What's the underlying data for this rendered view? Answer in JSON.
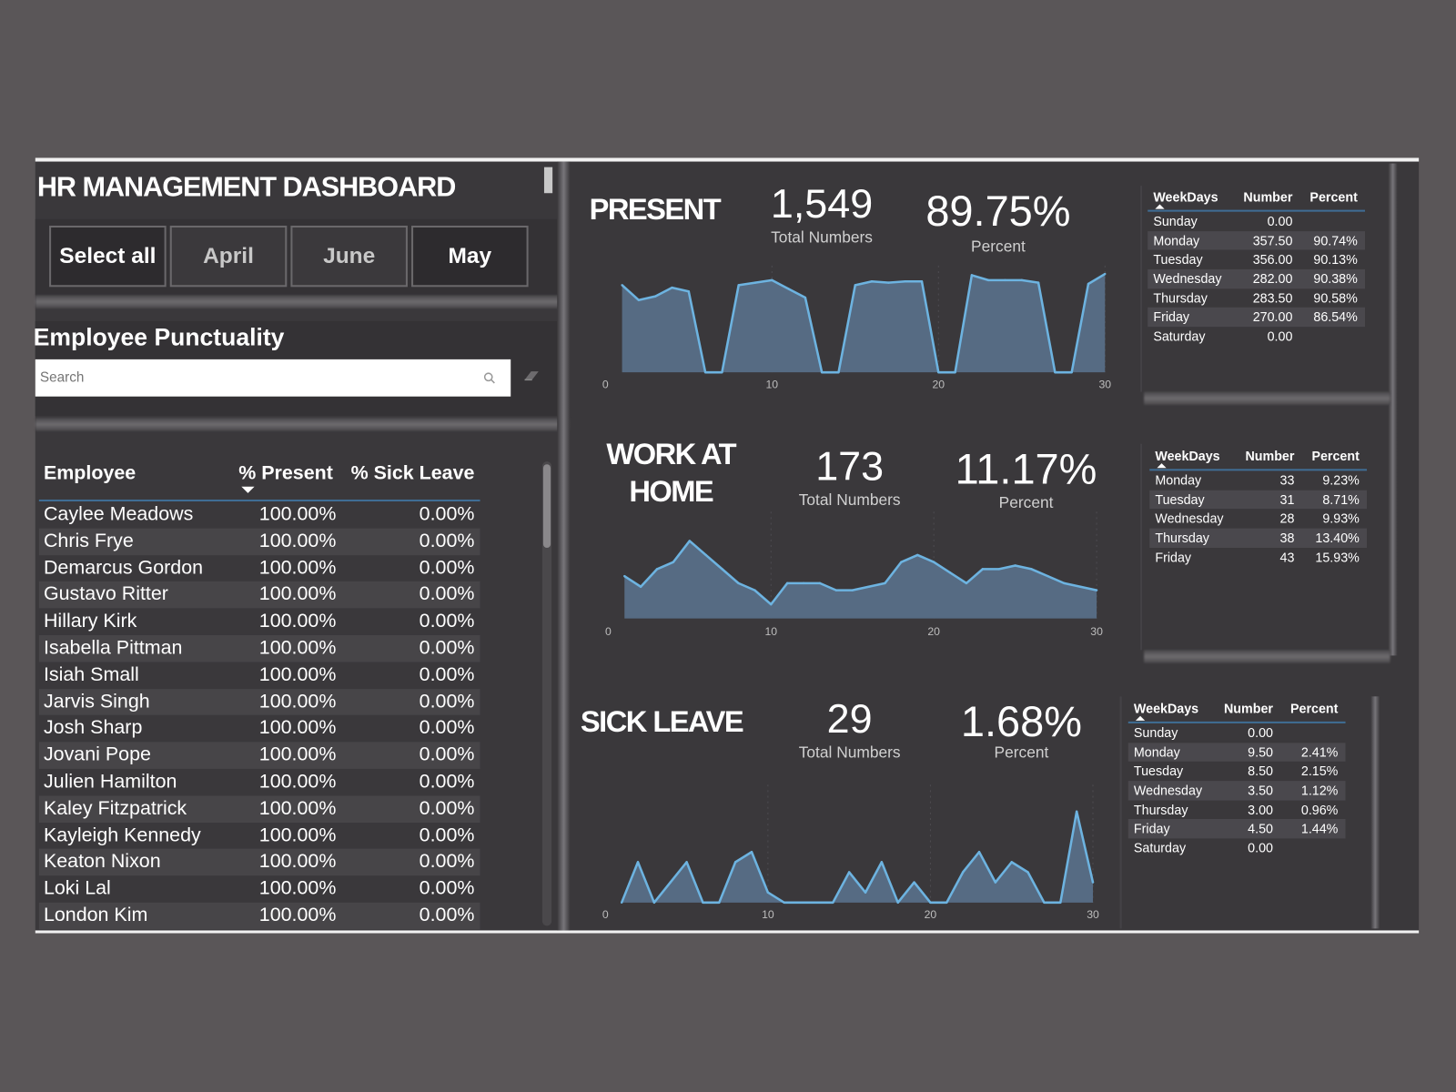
{
  "header": {
    "title": "HR MANAGEMENT DASHBOARD"
  },
  "slicer": {
    "items": [
      {
        "label": "Select all",
        "selected": true
      },
      {
        "label": "April",
        "selected": false
      },
      {
        "label": "June",
        "selected": false
      },
      {
        "label": "May",
        "selected": true
      }
    ]
  },
  "punctuality": {
    "title": "Employee Punctuality",
    "search_placeholder": "Search",
    "columns": [
      "Employee",
      "% Present",
      "% Sick Leave"
    ],
    "sorted_column": "% Present",
    "rows": [
      [
        "Caylee Meadows",
        "100.00%",
        "0.00%"
      ],
      [
        "Chris Frye",
        "100.00%",
        "0.00%"
      ],
      [
        "Demarcus Gordon",
        "100.00%",
        "0.00%"
      ],
      [
        "Gustavo Ritter",
        "100.00%",
        "0.00%"
      ],
      [
        "Hillary Kirk",
        "100.00%",
        "0.00%"
      ],
      [
        "Isabella Pittman",
        "100.00%",
        "0.00%"
      ],
      [
        "Isiah Small",
        "100.00%",
        "0.00%"
      ],
      [
        "Jarvis Singh",
        "100.00%",
        "0.00%"
      ],
      [
        "Josh Sharp",
        "100.00%",
        "0.00%"
      ],
      [
        "Jovani Pope",
        "100.00%",
        "0.00%"
      ],
      [
        "Julien Hamilton",
        "100.00%",
        "0.00%"
      ],
      [
        "Kaley Fitzpatrick",
        "100.00%",
        "0.00%"
      ],
      [
        "Kayleigh Kennedy",
        "100.00%",
        "0.00%"
      ],
      [
        "Keaton Nixon",
        "100.00%",
        "0.00%"
      ],
      [
        "Loki Lal",
        "100.00%",
        "0.00%"
      ],
      [
        "London Kim",
        "100.00%",
        "0.00%"
      ]
    ]
  },
  "sections": {
    "present": {
      "title": "PRESENT",
      "total": "1,549",
      "total_label": "Total Numbers",
      "percent": "89.75%",
      "percent_label": "Percent",
      "table": {
        "columns": [
          "WeekDays",
          "Number",
          "Percent"
        ],
        "rows": [
          [
            "Sunday",
            "0.00",
            ""
          ],
          [
            "Monday",
            "357.50",
            "90.74%"
          ],
          [
            "Tuesday",
            "356.00",
            "90.13%"
          ],
          [
            "Wednesday",
            "282.00",
            "90.38%"
          ],
          [
            "Thursday",
            "283.50",
            "90.58%"
          ],
          [
            "Friday",
            "270.00",
            "86.54%"
          ],
          [
            "Saturday",
            "0.00",
            ""
          ]
        ]
      }
    },
    "wah": {
      "title_line1": "WORK AT",
      "title_line2": "HOME",
      "total": "173",
      "total_label": "Total Numbers",
      "percent": "11.17%",
      "percent_label": "Percent",
      "table": {
        "columns": [
          "WeekDays",
          "Number",
          "Percent"
        ],
        "rows": [
          [
            "Monday",
            "33",
            "9.23%"
          ],
          [
            "Tuesday",
            "31",
            "8.71%"
          ],
          [
            "Wednesday",
            "28",
            "9.93%"
          ],
          [
            "Thursday",
            "38",
            "13.40%"
          ],
          [
            "Friday",
            "43",
            "15.93%"
          ]
        ]
      }
    },
    "sick": {
      "title": "SICK LEAVE",
      "total": "29",
      "total_label": "Total Numbers",
      "percent": "1.68%",
      "percent_label": "Percent",
      "table": {
        "columns": [
          "WeekDays",
          "Number",
          "Percent"
        ],
        "rows": [
          [
            "Sunday",
            "0.00",
            ""
          ],
          [
            "Monday",
            "9.50",
            "2.41%"
          ],
          [
            "Tuesday",
            "8.50",
            "2.15%"
          ],
          [
            "Wednesday",
            "3.50",
            "1.12%"
          ],
          [
            "Thursday",
            "3.00",
            "0.96%"
          ],
          [
            "Friday",
            "4.50",
            "1.44%"
          ],
          [
            "Saturday",
            "0.00",
            ""
          ]
        ]
      }
    }
  },
  "colors": {
    "line": "#6db3e0",
    "fill": "#566b83",
    "header_rule": "#3f6d94"
  },
  "chart_data": [
    {
      "type": "area",
      "id": "present",
      "x_ticks": [
        0,
        10,
        20,
        30
      ],
      "xlim": [
        0,
        30
      ],
      "ylim": [
        0,
        82
      ],
      "grid": "vertical dotted",
      "x": [
        1,
        2,
        3,
        4,
        5,
        6,
        7,
        8,
        9,
        10,
        11,
        12,
        13,
        14,
        15,
        16,
        17,
        18,
        19,
        20,
        21,
        22,
        23,
        24,
        25,
        26,
        27,
        28,
        29,
        30
      ],
      "values": [
        70,
        58,
        61,
        68,
        65,
        0,
        0,
        70,
        72,
        74,
        67,
        60,
        0,
        0,
        70,
        73,
        72,
        73,
        73,
        0,
        0,
        78,
        74,
        74,
        74,
        72,
        0,
        0,
        71,
        79
      ]
    },
    {
      "type": "area",
      "id": "wah",
      "x_ticks": [
        0,
        10,
        20,
        30
      ],
      "xlim": [
        0,
        30
      ],
      "ylim": [
        0,
        14.5
      ],
      "grid": "vertical dotted",
      "x": [
        1,
        2,
        3,
        4,
        5,
        6,
        7,
        8,
        9,
        10,
        11,
        12,
        13,
        14,
        15,
        16,
        17,
        18,
        19,
        20,
        21,
        22,
        23,
        24,
        25,
        26,
        27,
        28,
        29,
        30
      ],
      "values": [
        6,
        4.5,
        7,
        8,
        11,
        9,
        7,
        5,
        4,
        2,
        5,
        5,
        5,
        4,
        4,
        4.5,
        5,
        8,
        9,
        8,
        6.5,
        5,
        7,
        7,
        7.5,
        7,
        6,
        5,
        4.5,
        4
      ]
    },
    {
      "type": "area",
      "id": "sick",
      "x_ticks": [
        0,
        10,
        20,
        30
      ],
      "xlim": [
        0,
        30
      ],
      "ylim": [
        0,
        5.6
      ],
      "grid": "vertical dotted",
      "x": [
        1,
        2,
        3,
        4,
        5,
        6,
        7,
        8,
        9,
        10,
        11,
        12,
        13,
        14,
        15,
        16,
        17,
        18,
        19,
        20,
        21,
        22,
        23,
        24,
        25,
        26,
        27,
        28,
        29,
        30
      ],
      "values": [
        0,
        2,
        0,
        1,
        2,
        0,
        0,
        2,
        2.5,
        0.5,
        0,
        0,
        0,
        0,
        1.5,
        0.5,
        2,
        0,
        1,
        0,
        0,
        1.5,
        2.5,
        1,
        2,
        1.5,
        0,
        0,
        4.5,
        1
      ]
    }
  ]
}
